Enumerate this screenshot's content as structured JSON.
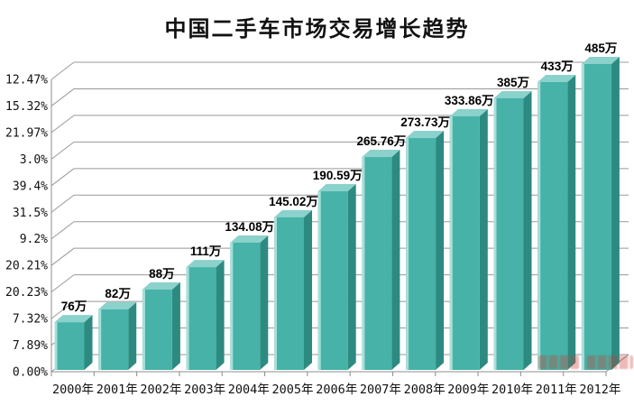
{
  "chart_data": {
    "type": "bar",
    "projection": "3d",
    "title": "中国二手车市场交易增长趋势",
    "categories": [
      "2000年",
      "2001年",
      "2002年",
      "2003年",
      "2004年",
      "2005年",
      "2006年",
      "2007年",
      "2008年",
      "2009年",
      "2010年",
      "2011年",
      "2012年"
    ],
    "values": [
      76,
      82,
      88,
      111,
      134.08,
      145.02,
      190.59,
      265.76,
      273.73,
      333.86,
      385,
      433,
      485
    ],
    "value_labels": [
      "76万",
      "82万",
      "88万",
      "111万",
      "134.08万",
      "145.02万",
      "190.59万",
      "265.76万",
      "273.73万",
      "333.86万",
      "385万",
      "433万",
      "485万"
    ],
    "unit": "万",
    "y_axis_tick_labels_top_to_bottom": [
      "12.47%",
      "15.32%",
      "21.97%",
      "3.0%",
      "39.4%",
      "31.5%",
      "9.2%",
      "20.21%",
      "20.23%",
      "7.32%",
      "7.89%",
      "0.00%"
    ],
    "bar_height_fractions": [
      0.156,
      0.198,
      0.263,
      0.336,
      0.416,
      0.499,
      0.584,
      0.696,
      0.758,
      0.829,
      0.888,
      0.941,
      1.0
    ],
    "grid": true,
    "legend": null,
    "colors": {
      "bar_front": "#46b2a8",
      "bar_top": "#8ad2cb",
      "bar_side": "#2c8a81",
      "bar_highlight": "#a8dfd9",
      "grid_line": "#999999",
      "axis_line": "#8c8c8c",
      "text": "#111111",
      "background": "#ffffff",
      "watermark": "#c84b42"
    }
  },
  "watermark": {
    "present": true,
    "legible": false,
    "color": "#c84b42",
    "position": "bottom-right"
  }
}
